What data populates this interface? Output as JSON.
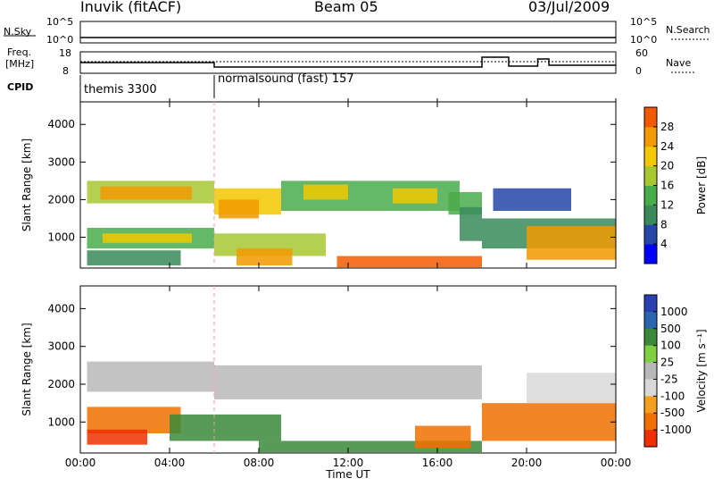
{
  "header": {
    "radar": "Inuvik (fitACF)",
    "beam": "Beam 05",
    "date": "03/Jul/2009"
  },
  "top_panels": {
    "nsky": {
      "label": "N.Sky",
      "ticks": [
        "10^5",
        "10^0"
      ],
      "right_label": "N.Search",
      "right_ticks": [
        "10^5",
        "10^0"
      ]
    },
    "freq": {
      "label_line1": "Freq.",
      "label_line2": "[MHz]",
      "ticks": [
        "18",
        "8"
      ],
      "right_label": "Nave",
      "right_ticks": [
        "60",
        "0"
      ]
    },
    "cpid": {
      "label": "CPID",
      "modes": [
        {
          "text": "themis 3300"
        },
        {
          "text": "normalsound (fast) 157"
        }
      ]
    }
  },
  "colors": {
    "power_scale": [
      "#0000ff",
      "#2646a8",
      "#3a8a5a",
      "#4aab4a",
      "#a8c832",
      "#f2c800",
      "#f29a00",
      "#f25a00",
      "#e80000"
    ],
    "velocity_scale": [
      "#2a3fb0",
      "#2a66b0",
      "#3a8a3a",
      "#7fd040",
      "#b8b8b8",
      "#d8d8d8",
      "#f5a020",
      "#f07000",
      "#f03000",
      "#e00000"
    ]
  },
  "chart_data": [
    {
      "type": "heatmap",
      "panel": "power",
      "ylabel": "Slant Range [km]",
      "xlabel": "",
      "x_range_hours": [
        0,
        24
      ],
      "y_range_km": [
        180,
        4600
      ],
      "yticks": [
        "1000",
        "2000",
        "3000",
        "4000"
      ],
      "colorbar_label": "Power [dB]",
      "colorbar_ticks": [
        "4",
        "8",
        "12",
        "16",
        "20",
        "24",
        "28"
      ],
      "bands": [
        {
          "t": [
            0.3,
            6.0
          ],
          "r": [
            1900,
            2500
          ],
          "v": 18
        },
        {
          "t": [
            0.9,
            5.0
          ],
          "r": [
            2000,
            2350
          ],
          "v": 26
        },
        {
          "t": [
            0.3,
            6.0
          ],
          "r": [
            700,
            1250
          ],
          "v": 14
        },
        {
          "t": [
            1.0,
            5.0
          ],
          "r": [
            850,
            1100
          ],
          "v": 22
        },
        {
          "t": [
            0.3,
            4.5
          ],
          "r": [
            250,
            650
          ],
          "v": 10
        },
        {
          "t": [
            6.0,
            9.0
          ],
          "r": [
            1600,
            2300
          ],
          "v": 20
        },
        {
          "t": [
            6.2,
            8.0
          ],
          "r": [
            1500,
            2000
          ],
          "v": 26
        },
        {
          "t": [
            6.0,
            11.0
          ],
          "r": [
            500,
            1100
          ],
          "v": 16
        },
        {
          "t": [
            7.0,
            9.5
          ],
          "r": [
            250,
            700
          ],
          "v": 24
        },
        {
          "t": [
            9.0,
            17.0
          ],
          "r": [
            1700,
            2500
          ],
          "v": 14
        },
        {
          "t": [
            10.0,
            12.0
          ],
          "r": [
            2000,
            2400
          ],
          "v": 20
        },
        {
          "t": [
            14.0,
            16.0
          ],
          "r": [
            1900,
            2300
          ],
          "v": 22
        },
        {
          "t": [
            11.5,
            18.0
          ],
          "r": [
            200,
            500
          ],
          "v": 28
        },
        {
          "t": [
            16.5,
            18.0
          ],
          "r": [
            1600,
            2200
          ],
          "v": 12
        },
        {
          "t": [
            17.0,
            18.0
          ],
          "r": [
            900,
            1800
          ],
          "v": 8
        },
        {
          "t": [
            18.0,
            24.0
          ],
          "r": [
            700,
            1500
          ],
          "v": 8
        },
        {
          "t": [
            20.0,
            24.0
          ],
          "r": [
            400,
            1300
          ],
          "v": 24
        },
        {
          "t": [
            18.5,
            22.0
          ],
          "r": [
            1700,
            2300
          ],
          "v": 6
        }
      ]
    },
    {
      "type": "heatmap",
      "panel": "velocity",
      "ylabel": "Slant Range [km]",
      "xlabel": "Time UT",
      "x_range_hours": [
        0,
        24
      ],
      "y_range_km": [
        180,
        4600
      ],
      "xticks": [
        "00:00",
        "04:00",
        "08:00",
        "12:00",
        "16:00",
        "20:00",
        "00:00"
      ],
      "yticks": [
        "1000",
        "2000",
        "3000",
        "4000"
      ],
      "colorbar_label": "Velocity [m s⁻¹]",
      "colorbar_ticks": [
        "1000",
        "500",
        "100",
        "25",
        "-25",
        "-100",
        "-500",
        "-1000"
      ],
      "bands": [
        {
          "t": [
            0.3,
            6.0
          ],
          "r": [
            1800,
            2600
          ],
          "v": 0
        },
        {
          "t": [
            6.0,
            18.0
          ],
          "r": [
            1600,
            2500
          ],
          "v": 0
        },
        {
          "t": [
            0.3,
            4.5
          ],
          "r": [
            700,
            1400
          ],
          "v": -300
        },
        {
          "t": [
            0.3,
            3.0
          ],
          "r": [
            400,
            800
          ],
          "v": -600
        },
        {
          "t": [
            4.0,
            9.0
          ],
          "r": [
            500,
            1200
          ],
          "v": 300
        },
        {
          "t": [
            8.0,
            18.0
          ],
          "r": [
            200,
            500
          ],
          "v": 150
        },
        {
          "t": [
            15.0,
            17.5
          ],
          "r": [
            300,
            900
          ],
          "v": -300
        },
        {
          "t": [
            18.0,
            24.0
          ],
          "r": [
            500,
            1500
          ],
          "v": -400
        },
        {
          "t": [
            20.0,
            24.0
          ],
          "r": [
            1500,
            2300
          ],
          "v": -20
        }
      ]
    }
  ]
}
